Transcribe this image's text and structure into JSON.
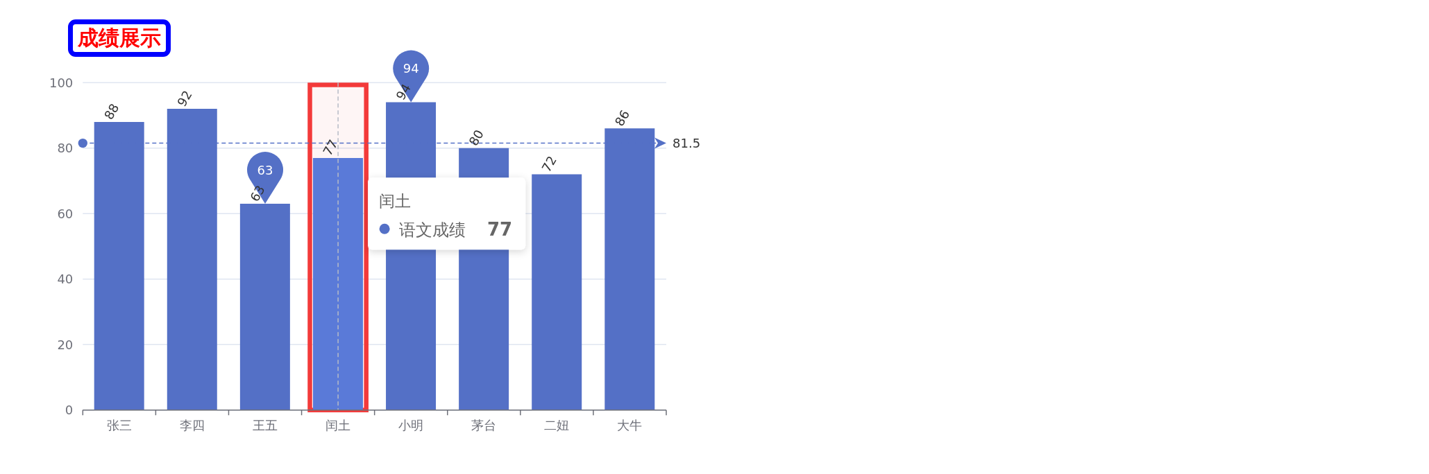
{
  "chart_data": {
    "type": "bar",
    "title": "成绩展示",
    "categories": [
      "张三",
      "李四",
      "王五",
      "闰土",
      "小明",
      "茅台",
      "二妞",
      "大牛"
    ],
    "series": [
      {
        "name": "语文成绩",
        "color": "#5470c6",
        "colors": [
          "#5470c6",
          "#5470c6",
          "#5470c6",
          "#5a7ad8",
          "#5470c6",
          "#5470c6",
          "#5470c6",
          "#5470c6"
        ],
        "values": [
          88,
          92,
          63,
          77,
          94,
          80,
          72,
          86
        ]
      }
    ],
    "ylim": [
      0,
      100
    ],
    "yticks": [
      0,
      20,
      40,
      60,
      80,
      100
    ],
    "grid": "y",
    "data_labels": true,
    "ref_lines": [
      {
        "axis": "y",
        "value": 81.5,
        "label": "81.5",
        "color": "#5470c6",
        "line_style": "dashed"
      },
      {
        "axis": "x",
        "value": "闰土",
        "color": "#b6bbc6",
        "line_style": "dashed"
      }
    ],
    "bands": [
      {
        "axis": "x",
        "from": "闰土",
        "to": "闰土",
        "color": "#f33a3a"
      }
    ],
    "annotations": [
      {
        "text": "94",
        "x": "小明",
        "y": 94
      },
      {
        "text": "63",
        "x": "王五",
        "y": 63
      },
      "77"
    ]
  }
}
